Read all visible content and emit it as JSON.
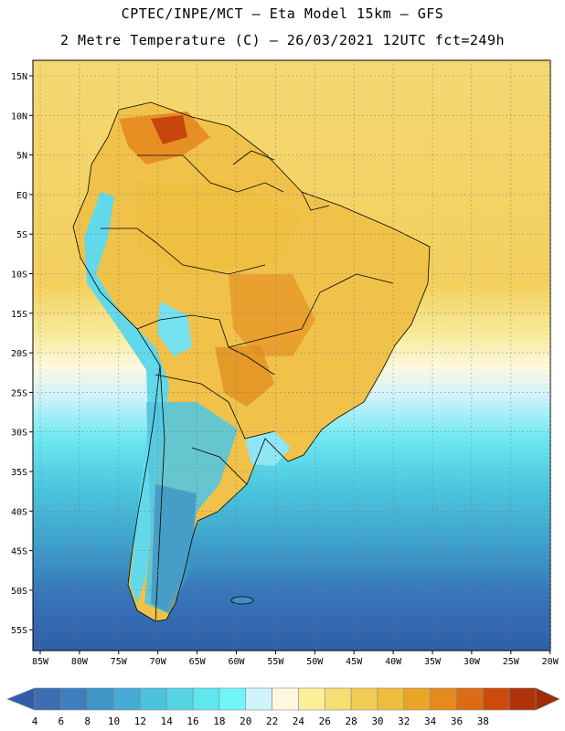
{
  "title": {
    "line1": "CPTEC/INPE/MCT –  Eta Model 15km – GFS",
    "line2": "2 Metre Temperature (C) – 26/03/2021 12UTC fct=249h"
  },
  "map": {
    "lat_labels": [
      "15N",
      "10N",
      "5N",
      "EQ",
      "5S",
      "10S",
      "15S",
      "20S",
      "25S",
      "30S",
      "35S",
      "40S",
      "45S",
      "50S",
      "55S"
    ],
    "lon_labels": [
      "85W",
      "80W",
      "75W",
      "70W",
      "65W",
      "60W",
      "55W",
      "50W",
      "45W",
      "40W",
      "35W",
      "30W",
      "25W",
      "20W"
    ]
  },
  "colorbar": {
    "levels": [
      "4",
      "6",
      "8",
      "10",
      "12",
      "14",
      "16",
      "18",
      "20",
      "22",
      "24",
      "26",
      "28",
      "30",
      "32",
      "34",
      "36",
      "38"
    ],
    "colors": [
      "#3b6db0",
      "#3d7fbd",
      "#3f97c8",
      "#44acd4",
      "#4cc2dc",
      "#55d4e4",
      "#5fe6ee",
      "#70f6f8",
      "#cff2fb",
      "#fef8e0",
      "#fbef9a",
      "#f5df73",
      "#f1cc55",
      "#eebd3e",
      "#eaa528",
      "#e58a1e",
      "#db6b14",
      "#cc4a0b",
      "#b0330a"
    ],
    "under_color": "#2f5ea8",
    "over_color": "#a02d08"
  }
}
